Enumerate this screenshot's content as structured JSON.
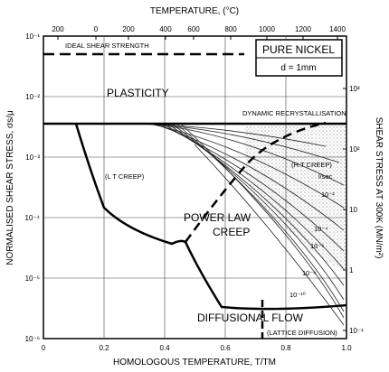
{
  "figure": {
    "top_axis_title": "TEMPERATURE, (°C)",
    "top_ticks": [
      "200",
      "0",
      "200",
      "400",
      "600",
      "800",
      "1000",
      "1200",
      "1400"
    ],
    "bottom_axis_title": "HOMOLOGOUS TEMPERATURE, T/TM",
    "bottom_ticks": [
      "0",
      "0.2",
      "0.4",
      "0.6",
      "0.8",
      "1.0"
    ],
    "left_axis_title": "NORMALISED SHEAR STRESS, σs/μ",
    "left_ticks": [
      "10⁻¹",
      "10⁻²",
      "10⁻³",
      "10⁻⁴",
      "10⁻⁵",
      "10⁻⁶"
    ],
    "right_axis_title": "SHEAR STRESS AT 300K (MN/m²)",
    "right_ticks": [
      "10³",
      "10²",
      "10",
      "1",
      "10⁻¹"
    ],
    "material_box": {
      "title": "PURE NICKEL",
      "grain": "d = 1mm"
    },
    "labels": {
      "ideal_strength": "IDEAL SHEAR STRENGTH",
      "plasticity": "PLASTICITY",
      "drx": "DYNAMIC RECRYSTALLISATION",
      "lt_creep": "(L T CREEP)",
      "ht_creep": "(H.T CREEP)",
      "power_law_1": "POWER LAW",
      "power_law_2": "CREEP",
      "diffusional": "DIFFUSIONAL FLOW",
      "lattice_diffusion": "(LATTICE DIFFUSION)",
      "rate_unit": "l/sec",
      "rate_m2": "10⁻²",
      "rate_m4": "10⁻⁴",
      "rate_m6": "10⁻⁶",
      "rate_m8": "10⁻⁸",
      "rate_m10": "10⁻¹⁰"
    },
    "diagram_type": "deformation-mechanism map",
    "x_range": [
      0,
      1.0
    ],
    "y_range_log10": [
      -6,
      -1
    ],
    "strain_rate_contours_per_sec": [
      1,
      0.01,
      0.0001,
      1e-06,
      1e-08,
      1e-10
    ]
  }
}
